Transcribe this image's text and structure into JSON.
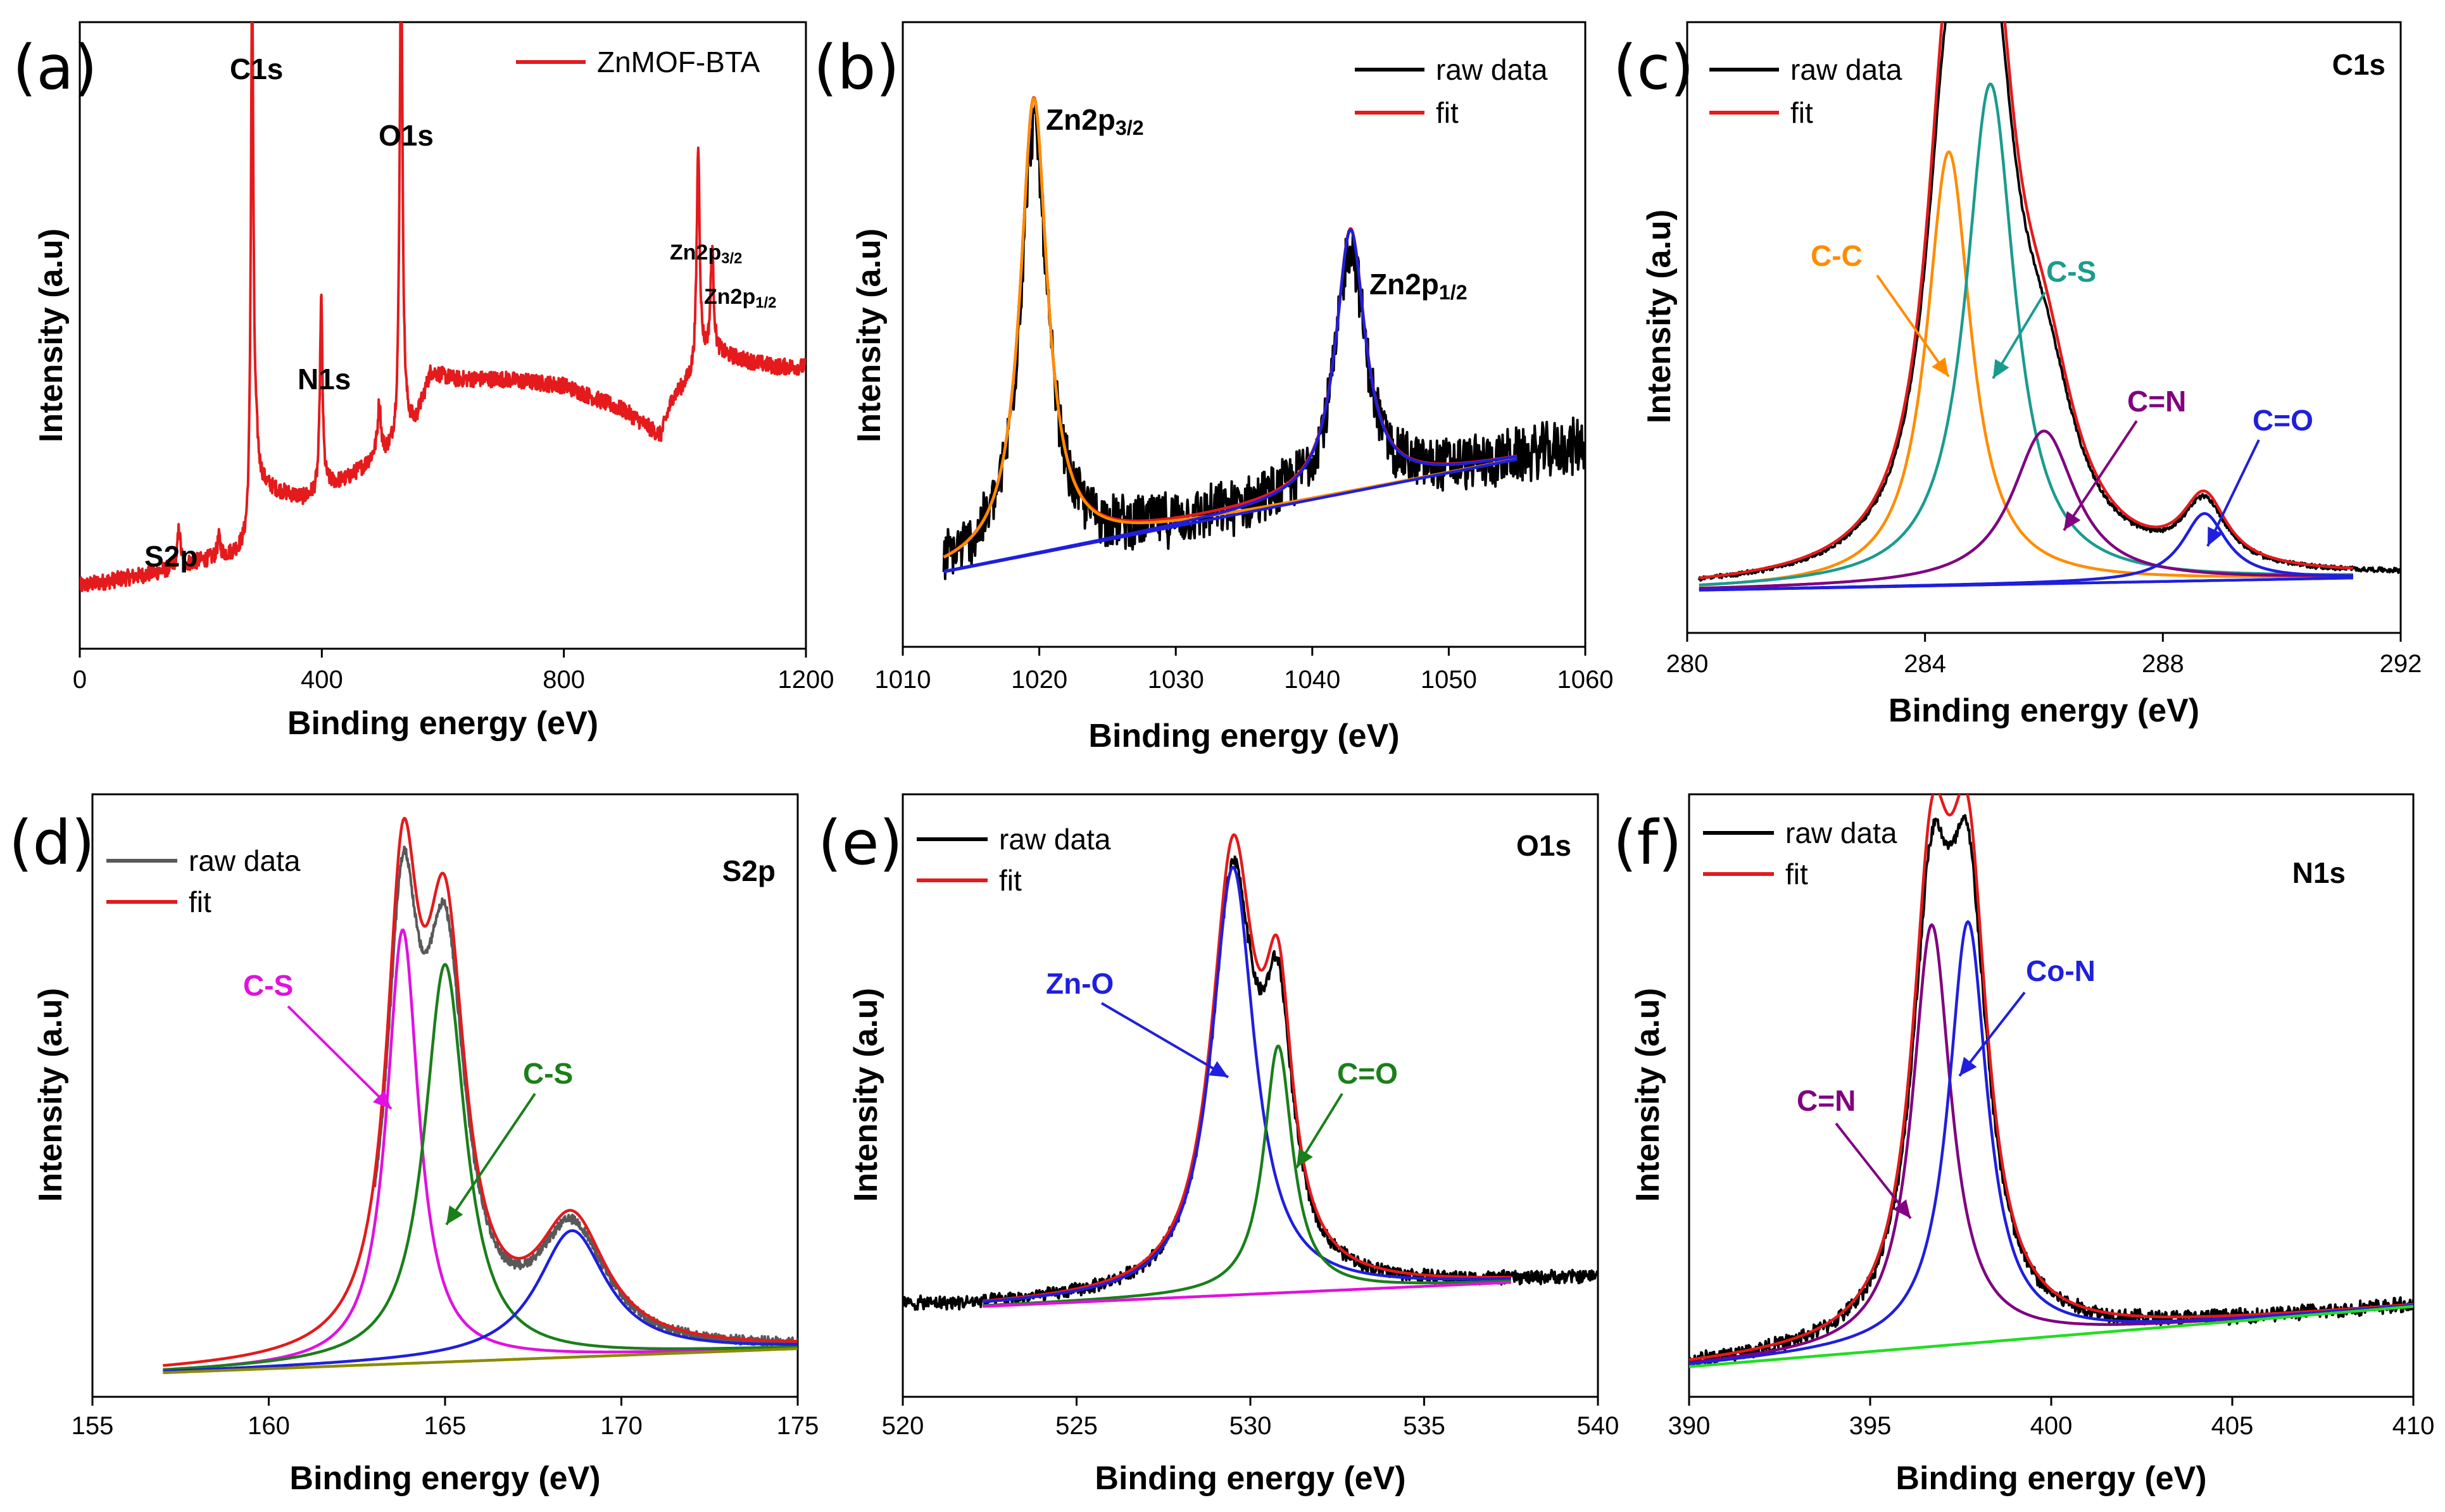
{
  "chart_data": [
    {
      "panel": "(a)",
      "type": "line",
      "title": "",
      "xlabel": "Binding energy (eV)",
      "ylabel": "Intensity (a.u)",
      "xlim": [
        0,
        1200
      ],
      "ylim": [
        0,
        100
      ],
      "xticks": [
        0,
        400,
        800,
        1200
      ],
      "legend": [
        "ZnMOF-BTA"
      ],
      "legend_position": "top-right",
      "series": [
        {
          "name": "ZnMOF-BTA",
          "color": "#e41a1c",
          "role": "survey",
          "noise": 1.3,
          "x": [
            0,
            60,
            120,
            160,
            200,
            250,
            275,
            283,
            290,
            300,
            330,
            370,
            398,
            405,
            440,
            470,
            490,
            505,
            520,
            530,
            540,
            555,
            580,
            620,
            700,
            800,
            900,
            960,
            980,
            1000,
            1022,
            1030,
            1045,
            1060,
            1100,
            1150,
            1200
          ],
          "y": [
            10,
            11,
            12,
            13,
            14,
            15,
            16,
            17,
            25,
            26,
            25,
            24,
            25,
            26,
            27,
            29,
            31,
            31,
            32,
            33,
            35,
            36,
            44,
            43,
            43,
            42,
            38,
            34,
            40,
            42,
            44,
            46,
            47,
            47,
            46,
            45,
            45
          ],
          "peaks": [
            [
              164,
              6,
              3
            ],
            [
              230,
              3,
              3
            ],
            [
              284.8,
              88,
              2.5
            ],
            [
              292,
              4,
              4
            ],
            [
              399,
              31,
              2.5
            ],
            [
              495,
              8,
              3
            ],
            [
              531,
              81,
              2.8
            ],
            [
              1022,
              36,
              3
            ],
            [
              1045,
              17,
              3
            ]
          ]
        }
      ],
      "annotations": [
        "S2p",
        "C1s",
        "N1s",
        "O1s",
        "Zn2p3/2",
        "Zn2p1/2"
      ]
    },
    {
      "panel": "(b)",
      "type": "line",
      "title": "",
      "xlabel": "Binding energy (eV)",
      "ylabel": "Intensity (a.u)",
      "xlim": [
        1010,
        1060
      ],
      "ylim": [
        0,
        100
      ],
      "xticks": [
        1010,
        1020,
        1030,
        1040,
        1050,
        1060
      ],
      "legend": [
        "raw data",
        "fit"
      ],
      "legend_position": "top-right",
      "baseline": [
        [
          1013,
          12
        ],
        [
          1055,
          30
        ]
      ],
      "series": [
        {
          "name": "raw data",
          "color": "#000000",
          "role": "raw",
          "range": [
            1013,
            1060
          ],
          "noise": 3.5,
          "extend_slope": 0.43
        },
        {
          "name": "fit",
          "color": "#e41a1c",
          "role": "envelope",
          "range": [
            1013,
            1055
          ]
        },
        {
          "name": "Zn2p3/2",
          "color": "#ff8c00",
          "role": "component",
          "range": [
            1013,
            1055
          ],
          "peak": [
            1019.6,
            73,
            1.2
          ]
        },
        {
          "name": "Zn2p1/2",
          "color": "#1f1fdd",
          "role": "component",
          "range": [
            1013,
            1055
          ],
          "peak": [
            1042.8,
            42,
            1.3
          ]
        },
        {
          "name": "background",
          "color": "#1f1fdd",
          "role": "background",
          "range": [
            1013,
            1055
          ]
        }
      ],
      "annotations": [
        "Zn2p3/2",
        "Zn2p1/2"
      ]
    },
    {
      "panel": "(c)",
      "type": "line",
      "title": "C1s",
      "xlabel": "Binding energy (eV)",
      "ylabel": "Intensity (a.u)",
      "xlim": [
        280,
        292
      ],
      "ylim": [
        0,
        100
      ],
      "xticks": [
        280,
        284,
        288,
        292
      ],
      "legend": [
        "raw data",
        "fit"
      ],
      "legend_position": "top-left",
      "baseline": [
        [
          280.2,
          7
        ],
        [
          291.2,
          9
        ]
      ],
      "series": [
        {
          "name": "raw data",
          "color": "#000000",
          "role": "raw",
          "range": [
            280.2,
            292
          ],
          "noise": 0.3,
          "extend_slope": 0.2
        },
        {
          "name": "fit",
          "color": "#e41a1c",
          "role": "envelope",
          "range": [
            280.2,
            291.2
          ]
        },
        {
          "name": "C-C",
          "color": "#ff8c00",
          "role": "component",
          "range": [
            280.2,
            291.2
          ],
          "peak": [
            284.4,
            71,
            0.45
          ]
        },
        {
          "name": "C-S",
          "color": "#1a9b8f",
          "role": "component",
          "range": [
            280.2,
            291.2
          ],
          "peak": [
            285.1,
            82,
            0.5
          ]
        },
        {
          "name": "C=N",
          "color": "#800080",
          "role": "component",
          "range": [
            280.2,
            291.2
          ],
          "peak": [
            286.0,
            25,
            0.65
          ]
        },
        {
          "name": "C=O",
          "color": "#1f1fdd",
          "role": "component",
          "range": [
            280.2,
            291.2
          ],
          "peak": [
            288.7,
            11,
            0.45
          ]
        },
        {
          "name": "background",
          "color": "#1f1fdd",
          "role": "background",
          "range": [
            280.2,
            291.2
          ]
        }
      ],
      "annotations": [
        "C-C",
        "C-S",
        "C=N",
        "C=O"
      ]
    },
    {
      "panel": "(d)",
      "type": "line",
      "title": "S2p",
      "xlabel": "Binding energy (eV)",
      "ylabel": "Intensity (a.u)",
      "xlim": [
        155,
        175
      ],
      "ylim": [
        0,
        100
      ],
      "xticks": [
        155,
        160,
        165,
        170,
        175
      ],
      "legend": [
        "raw data",
        "fit"
      ],
      "legend_position": "top-left",
      "baseline": [
        [
          157,
          4
        ],
        [
          175,
          8
        ]
      ],
      "series": [
        {
          "name": "raw data",
          "color": "#595959",
          "role": "raw",
          "range": [
            163,
            175
          ],
          "noise": 0.6
        },
        {
          "name": "fit",
          "color": "#e41a1c",
          "role": "envelope",
          "range": [
            157,
            175
          ]
        },
        {
          "name": "C-S",
          "color": "#e011e0",
          "role": "component",
          "range": [
            157,
            175
          ],
          "peak": [
            163.8,
            72,
            0.55
          ]
        },
        {
          "name": "C-S",
          "color": "#1a7f1a",
          "role": "component",
          "range": [
            157,
            175
          ],
          "peak": [
            165.0,
            66,
            0.7
          ]
        },
        {
          "name": "S2p",
          "color": "#1f1fdd",
          "role": "component",
          "range": [
            157,
            175
          ],
          "peak": [
            168.6,
            21,
            1.2
          ]
        },
        {
          "name": "background",
          "color": "#8b8b00",
          "role": "background",
          "range": [
            157,
            175
          ]
        }
      ],
      "annotations": [
        "C-S",
        "C-S"
      ]
    },
    {
      "panel": "(e)",
      "type": "line",
      "title": "O1s",
      "xlabel": "Binding energy (eV)",
      "ylabel": "Intensity (a.u)",
      "xlim": [
        520,
        540
      ],
      "ylim": [
        0,
        100
      ],
      "xticks": [
        520,
        525,
        530,
        535,
        540
      ],
      "legend": [
        "raw data",
        "fit"
      ],
      "legend_position": "top-left",
      "baseline": [
        [
          522.3,
          15
        ],
        [
          537.5,
          19
        ]
      ],
      "series": [
        {
          "name": "raw data",
          "color": "#000000",
          "role": "raw",
          "range": [
            520,
            540
          ],
          "noise": 0.9,
          "extend_slope": 0.26
        },
        {
          "name": "fit",
          "color": "#e41a1c",
          "role": "envelope",
          "range": [
            522.3,
            537.5
          ]
        },
        {
          "name": "Zn-O",
          "color": "#1f1fdd",
          "role": "component",
          "range": [
            522.3,
            537.5
          ],
          "peak": [
            529.5,
            71,
            0.75
          ]
        },
        {
          "name": "C=O",
          "color": "#1a7f1a",
          "role": "component",
          "range": [
            522.3,
            537.5
          ],
          "peak": [
            530.8,
            41,
            0.5
          ]
        },
        {
          "name": "background",
          "color": "#e011e0",
          "role": "background",
          "range": [
            522.3,
            537.5
          ]
        }
      ],
      "annotations": [
        "Zn-O",
        "C=O"
      ]
    },
    {
      "panel": "(f)",
      "type": "line",
      "title": "N1s",
      "xlabel": "Binding energy (eV)",
      "ylabel": "Intensity (a.u)",
      "xlim": [
        390,
        410
      ],
      "ylim": [
        0,
        100
      ],
      "xticks": [
        390,
        395,
        400,
        405,
        410
      ],
      "legend": [
        "raw data",
        "fit"
      ],
      "legend_position": "top-left",
      "baseline": [
        [
          390,
          5
        ],
        [
          410,
          15
        ]
      ],
      "series": [
        {
          "name": "raw data",
          "color": "#000000",
          "role": "raw",
          "range": [
            390,
            410
          ],
          "noise": 1.0
        },
        {
          "name": "fit",
          "color": "#e41a1c",
          "role": "envelope",
          "range": [
            390,
            410
          ]
        },
        {
          "name": "C=N",
          "color": "#800080",
          "role": "component",
          "range": [
            390,
            410
          ],
          "peak": [
            396.7,
            70,
            0.65
          ]
        },
        {
          "name": "Co-N",
          "color": "#1f1fdd",
          "role": "component",
          "range": [
            390,
            410
          ],
          "peak": [
            397.7,
            70,
            0.65
          ]
        },
        {
          "name": "background",
          "color": "#22dd22",
          "role": "background",
          "range": [
            390,
            410
          ]
        }
      ],
      "annotations": [
        "C=N",
        "Co-N"
      ]
    }
  ]
}
